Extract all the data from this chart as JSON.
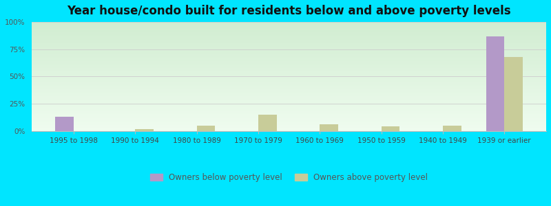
{
  "title": "Year house/condo built for residents below and above poverty levels",
  "categories": [
    "1995 to 1998",
    "1990 to 1994",
    "1980 to 1989",
    "1970 to 1979",
    "1960 to 1969",
    "1950 to 1959",
    "1940 to 1949",
    "1939 or earlier"
  ],
  "below_poverty": [
    13.0,
    0.0,
    0.0,
    0.0,
    0.0,
    0.0,
    0.0,
    87.0
  ],
  "above_poverty": [
    0.0,
    2.0,
    5.0,
    15.0,
    6.0,
    4.0,
    5.0,
    68.0
  ],
  "below_color": "#b399c8",
  "above_color": "#c8cc99",
  "yticks": [
    0,
    25,
    50,
    75,
    100
  ],
  "ylim": [
    0,
    100
  ],
  "bar_width": 0.3,
  "title_fontsize": 12,
  "tick_fontsize": 7.5,
  "legend_below_label": "Owners below poverty level",
  "legend_above_label": "Owners above poverty level",
  "bg_color": "#00e5ff",
  "plot_bg_color": "#e8f5e8"
}
